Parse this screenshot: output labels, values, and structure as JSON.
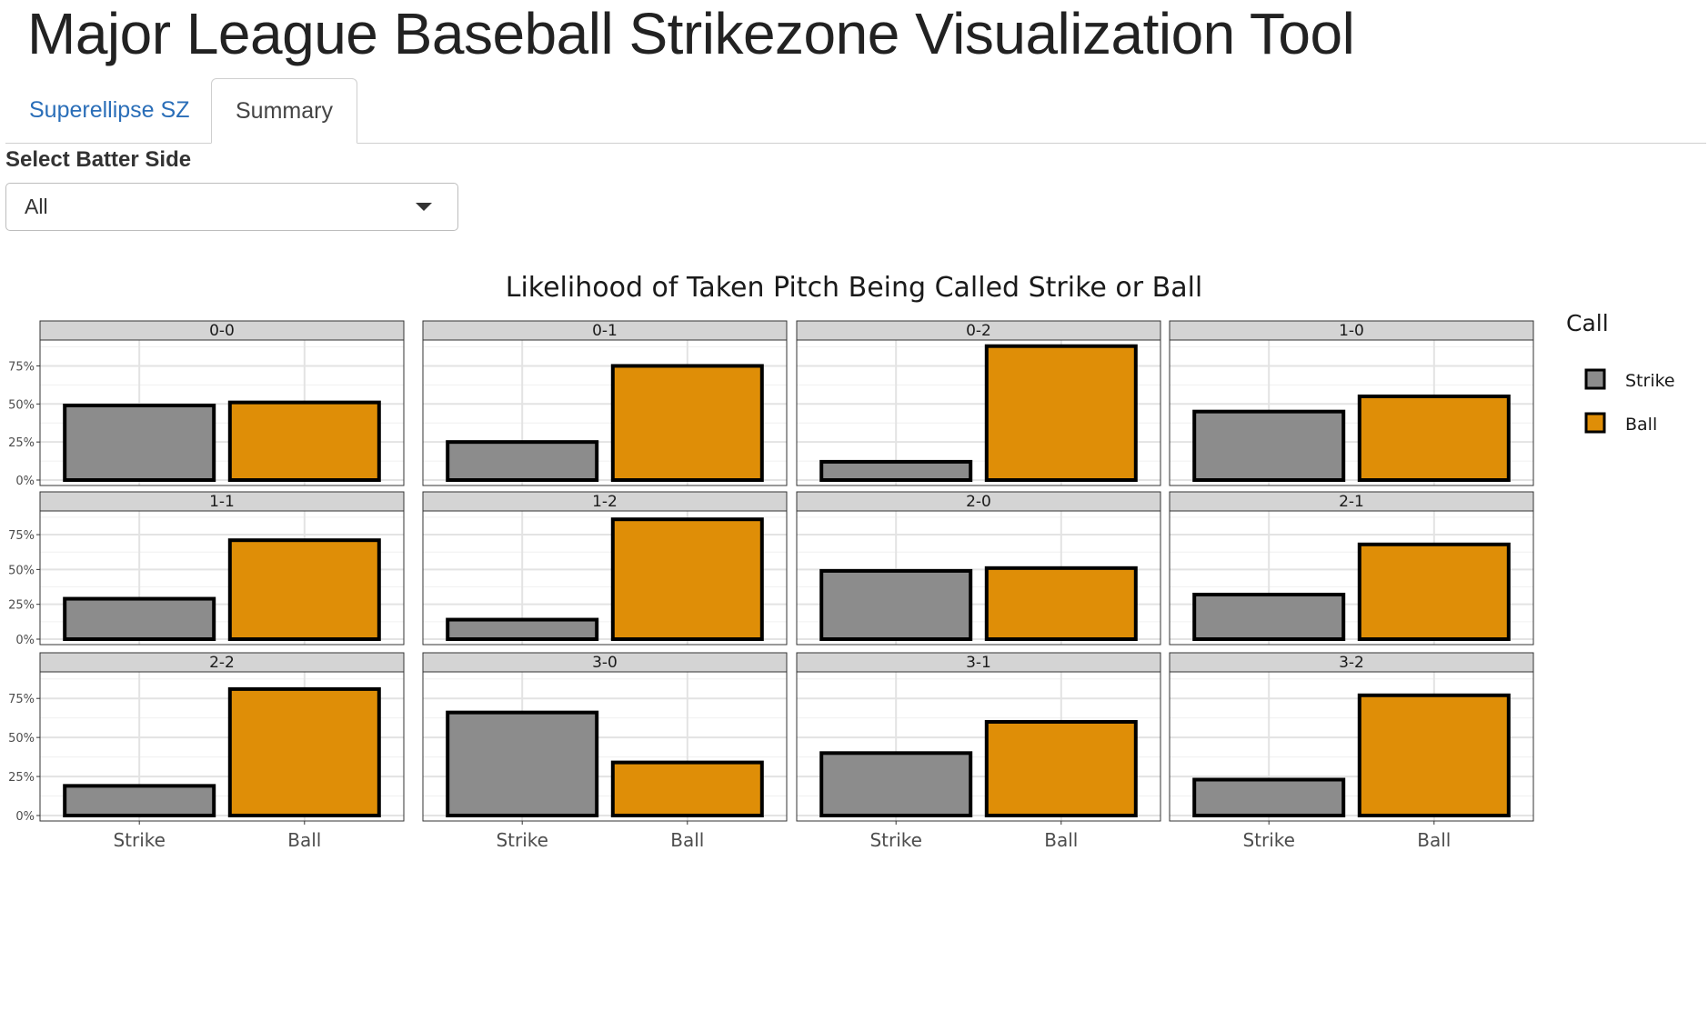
{
  "app": {
    "title": "Major League Baseball Strikezone Visualization Tool"
  },
  "tabs": [
    {
      "label": "Superellipse SZ",
      "active": false
    },
    {
      "label": "Summary",
      "active": true
    }
  ],
  "batter_side": {
    "label": "Select Batter Side",
    "value": "All"
  },
  "colors": {
    "strike": "#8c8c8c",
    "ball": "#df8e07",
    "strip": "#d4d4d4",
    "grid": "#e3e3e3"
  },
  "chart_data": {
    "type": "bar",
    "title": "Likelihood of Taken Pitch Being Called Strike or Ball",
    "categories": [
      "Strike",
      "Ball"
    ],
    "y_ticks": [
      "0%",
      "25%",
      "50%",
      "75%"
    ],
    "ylim": [
      0,
      0.92
    ],
    "grid": true,
    "legend": {
      "title": "Call",
      "placement": "right",
      "entries": [
        "Strike",
        "Ball"
      ]
    },
    "facets": [
      {
        "label": "0-0",
        "strike": 0.49,
        "ball": 0.51
      },
      {
        "label": "0-1",
        "strike": 0.25,
        "ball": 0.75
      },
      {
        "label": "0-2",
        "strike": 0.12,
        "ball": 0.88
      },
      {
        "label": "1-0",
        "strike": 0.45,
        "ball": 0.55
      },
      {
        "label": "1-1",
        "strike": 0.29,
        "ball": 0.71
      },
      {
        "label": "1-2",
        "strike": 0.14,
        "ball": 0.86
      },
      {
        "label": "2-0",
        "strike": 0.49,
        "ball": 0.51
      },
      {
        "label": "2-1",
        "strike": 0.32,
        "ball": 0.68
      },
      {
        "label": "2-2",
        "strike": 0.19,
        "ball": 0.81
      },
      {
        "label": "3-0",
        "strike": 0.66,
        "ball": 0.34
      },
      {
        "label": "3-1",
        "strike": 0.4,
        "ball": 0.6
      },
      {
        "label": "3-2",
        "strike": 0.23,
        "ball": 0.77
      }
    ]
  }
}
